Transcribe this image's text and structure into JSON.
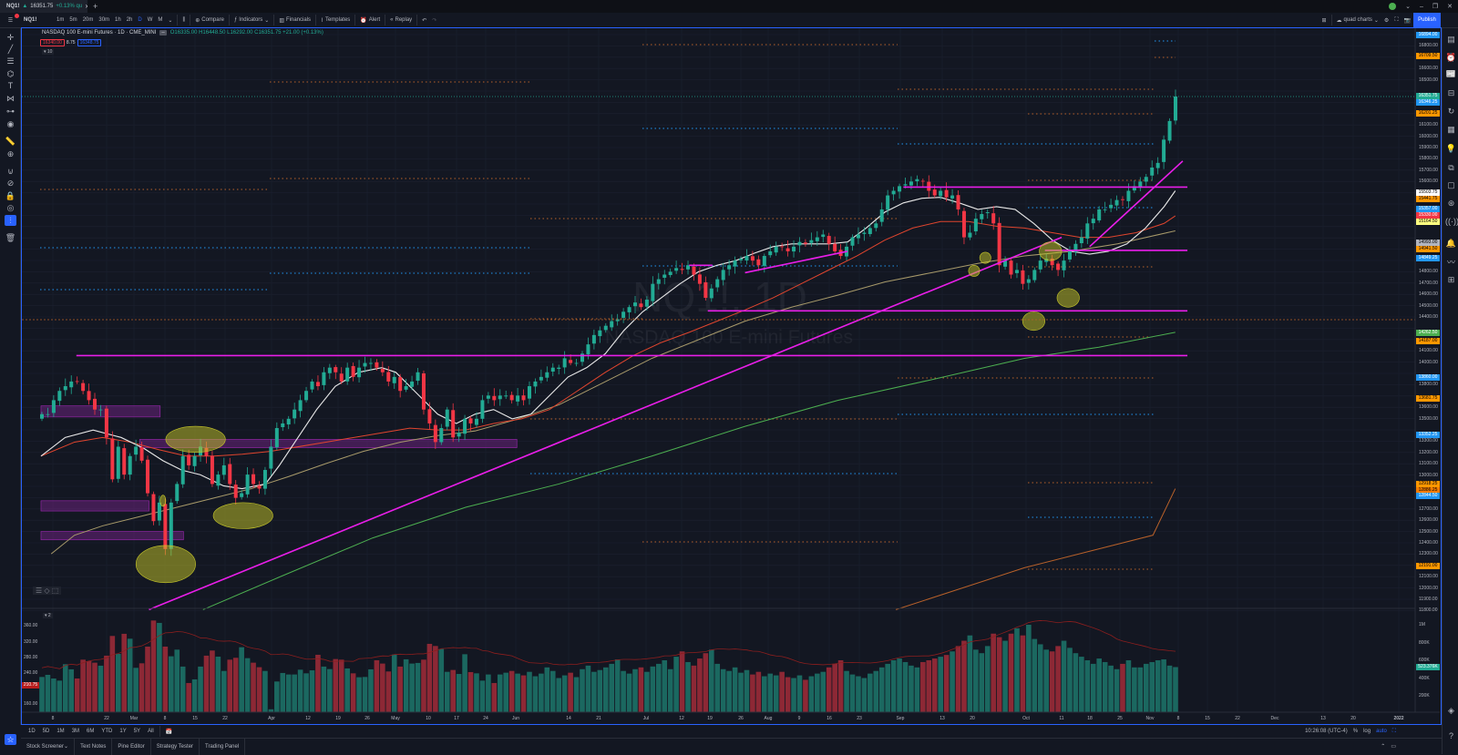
{
  "tab": {
    "symbol": "NQ1!",
    "arrow": "▲",
    "price": "16351.75",
    "change": "+0.13% qu",
    "new_tab": "+"
  },
  "window_controls": {
    "minimize": "–",
    "restore": "❐",
    "close": "✕",
    "chevron": "⌄"
  },
  "toolbar": {
    "symbol": "NQ1!",
    "intervals": [
      "1m",
      "5m",
      "20m",
      "30m",
      "1h",
      "2h",
      "D",
      "W",
      "M"
    ],
    "active_interval": "D",
    "compare": "Compare",
    "indicators": "Indicators",
    "financials": "Financials",
    "templates": "Templates",
    "alert": "Alert",
    "replay": "Replay",
    "layout_name": "quad charts",
    "publish": "Publish"
  },
  "legend": {
    "title": "NASDAQ 100 E-mini Futures · 1D · CME_MINI",
    "ohlc": "O16335.00 H16448.50 L16292.00 C16351.75 +21.00 (+0.13%)",
    "bid": "16340.00",
    "spread": "8.75",
    "ask": "16348.75",
    "indicators_toggle": "▾ 10",
    "volume_toggle": "▾ 2"
  },
  "watermark": {
    "symbol": "NQ1!, 1D",
    "name": "NASDAQ 100 E-mini Futures"
  },
  "colors": {
    "up": "#22ab94",
    "down": "#f23645",
    "accent": "#2962ff",
    "drawing": "#e91ee9",
    "highlight": "#c8c82a"
  },
  "chart_data": {
    "type": "candlestick",
    "price_axis": {
      "max": 16900,
      "min": 11800,
      "step": 100
    },
    "last_price": 16351.75,
    "closes": [
      13539,
      13539,
      13663,
      13745,
      13787,
      13828,
      13828,
      13745,
      13663,
      13580,
      13580,
      13333,
      12962,
      13251,
      13004,
      13168,
      13251,
      13127,
      12839,
      12592,
      12756,
      12345,
      12756,
      12921,
      13168,
      13086,
      13168,
      13251,
      13168,
      12921,
      13004,
      13086,
      12921,
      12798,
      12839,
      13004,
      12921,
      12880,
      13045,
      13251,
      13416,
      13457,
      13498,
      13580,
      13663,
      13745,
      13828,
      13787,
      13910,
      13951,
      13910,
      13828,
      13951,
      13869,
      13951,
      13992,
      13992,
      13951,
      13910,
      13828,
      13869,
      13745,
      13787,
      13828,
      13910,
      13580,
      13457,
      13292,
      13416,
      13580,
      13333,
      13375,
      13498,
      13457,
      13498,
      13663,
      13704,
      13663,
      13704,
      13704,
      13663,
      13704,
      13663,
      13787,
      13828,
      13869,
      13910,
      13951,
      13951,
      14034,
      13992,
      13992,
      14075,
      14157,
      14240,
      14281,
      14322,
      14363,
      14380,
      14446,
      14487,
      14528,
      14487,
      14553,
      14693,
      14734,
      14775,
      14800,
      14833,
      14816,
      14858,
      14775,
      14693,
      14569,
      14652,
      14734,
      14816,
      14858,
      14899,
      14915,
      14940,
      14899,
      14858,
      14940,
      14981,
      15022,
      15022,
      14981,
      15022,
      15064,
      15047,
      15080,
      15105,
      15130,
      15047,
      14981,
      14940,
      15022,
      15105,
      15130,
      15146,
      15187,
      15228,
      15352,
      15476,
      15517,
      15558,
      15575,
      15599,
      15620,
      15599,
      15517,
      15476,
      15517,
      15459,
      15476,
      15352,
      15105,
      15146,
      15270,
      15311,
      15327,
      15228,
      14858,
      14899,
      14775,
      14816,
      14693,
      14734,
      14816,
      14899,
      14915,
      14858,
      14816,
      14899,
      14981,
      15047,
      15105,
      15228,
      15270,
      15352,
      15352,
      15393,
      15435,
      15435,
      15517,
      15558,
      15599,
      15640,
      15723,
      15764,
      15970,
      16135,
      16351.75
    ],
    "volume_k": [
      412,
      436,
      395,
      371,
      556,
      498,
      395,
      607,
      590,
      573,
      539,
      652,
      874,
      672,
      898,
      843,
      515,
      566,
      754,
      1048,
      1021,
      754,
      645,
      720,
      529,
      344,
      385,
      529,
      652,
      710,
      641,
      480,
      607,
      628,
      747,
      624,
      573,
      522,
      480,
      48,
      361,
      457,
      440,
      440,
      494,
      453,
      487,
      662,
      529,
      501,
      614,
      607,
      508,
      453,
      409,
      412,
      498,
      600,
      563,
      474,
      665,
      529,
      611,
      563,
      570,
      607,
      785,
      761,
      727,
      470,
      491,
      446,
      668,
      467,
      453,
      371,
      440,
      344,
      440,
      460,
      480,
      450,
      430,
      470,
      420,
      450,
      520,
      480,
      400,
      430,
      460,
      410,
      500,
      540,
      470,
      490,
      520,
      560,
      610,
      480,
      450,
      500,
      520,
      470,
      530,
      560,
      600,
      500,
      640,
      700,
      580,
      540,
      620,
      680,
      720,
      560,
      500,
      480,
      520,
      460,
      490,
      440,
      470,
      420,
      450,
      430,
      470,
      410,
      400,
      430,
      380,
      420,
      450,
      470,
      520,
      560,
      600,
      480,
      440,
      420,
      400,
      450,
      480,
      520,
      560,
      600,
      620,
      580,
      540,
      520,
      580,
      600,
      620,
      640,
      660,
      700,
      760,
      820,
      880,
      720,
      680,
      760,
      900,
      860,
      820,
      900,
      960,
      880,
      1000,
      840,
      780,
      720,
      700,
      760,
      820,
      740,
      680,
      640,
      600,
      560,
      620,
      580,
      540,
      500,
      560,
      600,
      520,
      520,
      560,
      580,
      600,
      610,
      540,
      523.376
    ],
    "price_labels": [
      {
        "text": "16894.00",
        "color": "#2196f3",
        "price": 16894
      },
      {
        "text": "16709.50",
        "color": "#ff9800",
        "price": 16709.5
      },
      {
        "text": "16351.75",
        "color": "#22ab94",
        "price": 16351.75
      },
      {
        "text": "16346.25",
        "color": "#2196f3",
        "price": 16300
      },
      {
        "text": "16201.25",
        "color": "#ff9800",
        "price": 16201.25
      },
      {
        "text": "15503.75",
        "color": "#ffffff",
        "price": 15503.75
      },
      {
        "text": "15441.75",
        "color": "#ff9800",
        "price": 15441.75
      },
      {
        "text": "15357.00",
        "color": "#2196f3",
        "price": 15357
      },
      {
        "text": "15330.00",
        "color": "#f23645",
        "price": 15300
      },
      {
        "text": "15164.50",
        "color": "#ffff80",
        "price": 15240
      },
      {
        "text": "14993.00",
        "color": "#b2b5be",
        "price": 15060
      },
      {
        "text": "14941.50",
        "color": "#ff9800",
        "price": 15000
      },
      {
        "text": "14849.25",
        "color": "#2196f3",
        "price": 14920
      },
      {
        "text": "14262.50",
        "color": "#4caf50",
        "price": 14262.5
      },
      {
        "text": "14187.00",
        "color": "#ff9800",
        "price": 14187
      },
      {
        "text": "13860.00",
        "color": "#2196f3",
        "price": 13860
      },
      {
        "text": "13681.75",
        "color": "#ff9800",
        "price": 13681.75
      },
      {
        "text": "13352.25",
        "color": "#2196f3",
        "price": 13352.25
      },
      {
        "text": "12918.25",
        "color": "#ff9800",
        "price": 12918.25
      },
      {
        "text": "12886.25",
        "color": "#f57c00",
        "price": 12866
      },
      {
        "text": "12844.50",
        "color": "#2196f3",
        "price": 12814
      },
      {
        "text": "12191.00",
        "color": "#ff9800",
        "price": 12191
      }
    ],
    "volume_axis": {
      "right": [
        "1M",
        "800K",
        "600K",
        "400K",
        "200K"
      ],
      "last": "523.376K",
      "left": [
        "360.00",
        "320.00",
        "280.00",
        "240.00",
        "160.00"
      ],
      "left_last": "210.75"
    },
    "time_axis": [
      "8",
      "22",
      "Mar",
      "8",
      "15",
      "22",
      "Apr",
      "12",
      "19",
      "26",
      "May",
      "10",
      "17",
      "24",
      "Jun",
      "14",
      "21",
      "Jul",
      "12",
      "19",
      "26",
      "Aug",
      "9",
      "16",
      "23",
      "Sep",
      "13",
      "20",
      "Oct",
      "11",
      "18",
      "25",
      "Nov",
      "8",
      "15",
      "22",
      "Dec",
      "13",
      "20",
      "2022"
    ]
  },
  "range_bar": {
    "ranges": [
      "1D",
      "5D",
      "1M",
      "3M",
      "6M",
      "YTD",
      "1Y",
      "5Y",
      "All"
    ],
    "time": "10:26:08 (UTC-4)",
    "percent": "%",
    "log": "log",
    "auto": "auto"
  },
  "bottom_tabs": [
    "Stock Screener",
    "Text Notes",
    "Pine Editor",
    "Strategy Tester",
    "Trading Panel"
  ]
}
